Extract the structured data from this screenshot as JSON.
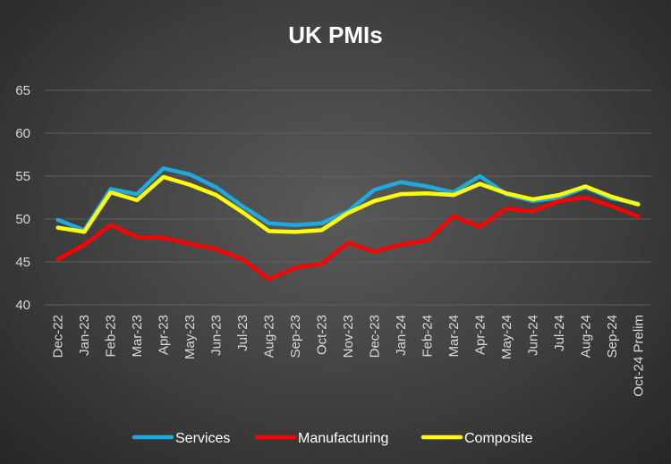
{
  "chart_data": {
    "type": "line",
    "title": "UK PMIs",
    "xlabel": "",
    "ylabel": "",
    "ylim": [
      40,
      65
    ],
    "yticks": [
      40,
      45,
      50,
      55,
      60,
      65
    ],
    "grid": true,
    "legend_position": "bottom",
    "categories": [
      "Dec-22",
      "Jan-23",
      "Feb-23",
      "Mar-23",
      "Apr-23",
      "May-23",
      "Jun-23",
      "Jul-23",
      "Aug-23",
      "Sep-23",
      "Oct-23",
      "Nov-23",
      "Dec-23",
      "Jan-24",
      "Feb-24",
      "Mar-24",
      "Apr-24",
      "May-24",
      "Jun-24",
      "Jul-24",
      "Aug-24",
      "Sep-24",
      "Oct-24 Prelim"
    ],
    "series": [
      {
        "name": "Services",
        "color": "#1fa9e1",
        "values": [
          49.9,
          48.7,
          53.5,
          52.9,
          55.9,
          55.2,
          53.7,
          51.5,
          49.5,
          49.3,
          49.5,
          50.9,
          53.4,
          54.3,
          53.8,
          53.1,
          55.0,
          52.9,
          52.1,
          52.5,
          53.7,
          52.4,
          51.8
        ]
      },
      {
        "name": "Manufacturing",
        "color": "#ff0000",
        "values": [
          45.3,
          47.0,
          49.3,
          47.9,
          47.8,
          47.1,
          46.5,
          45.3,
          43.0,
          44.3,
          44.8,
          47.2,
          46.2,
          47.0,
          47.5,
          50.3,
          49.1,
          51.2,
          50.9,
          52.1,
          52.5,
          51.5,
          50.3
        ]
      },
      {
        "name": "Composite",
        "color": "#ffff00",
        "values": [
          49.0,
          48.5,
          53.1,
          52.2,
          54.9,
          54.0,
          52.8,
          50.8,
          48.6,
          48.5,
          48.7,
          50.7,
          52.1,
          52.9,
          53.0,
          52.8,
          54.1,
          53.0,
          52.3,
          52.8,
          53.8,
          52.6,
          51.7
        ]
      }
    ]
  }
}
